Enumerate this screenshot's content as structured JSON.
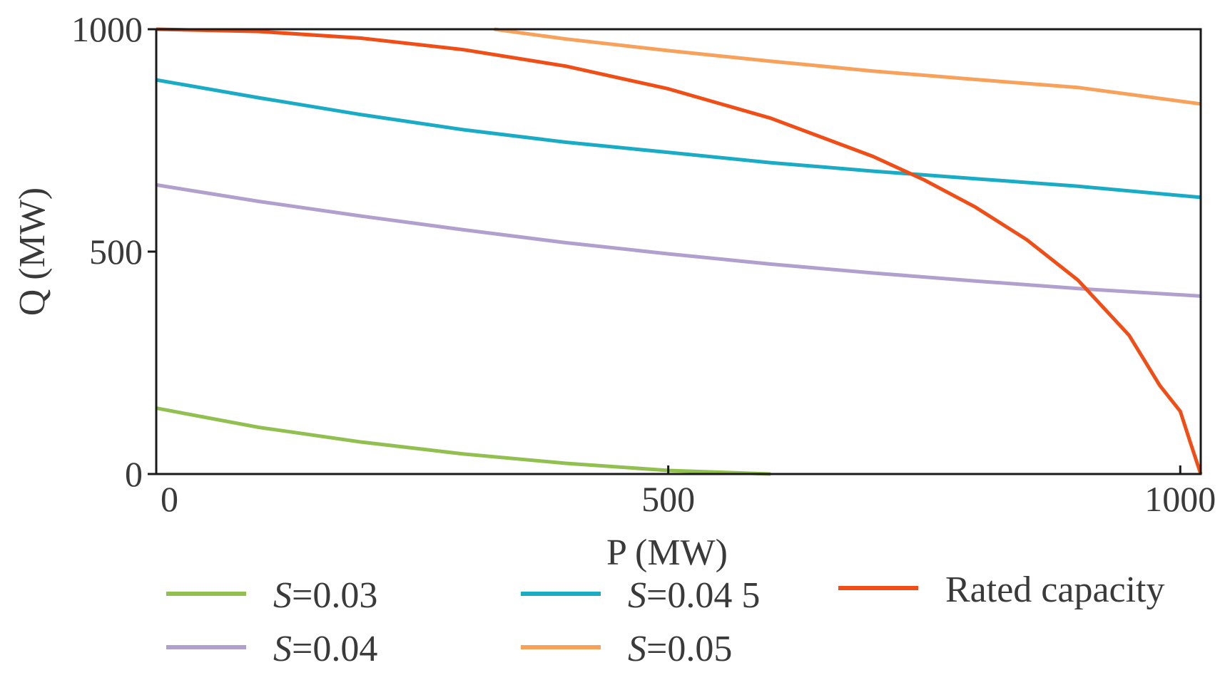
{
  "chart_data": {
    "type": "line",
    "title": "",
    "xlabel": "P (MW)",
    "ylabel": "Q (MW)",
    "xlim": [
      0,
      1020
    ],
    "ylim": [
      0,
      1000
    ],
    "xticks": [
      0,
      500,
      1000
    ],
    "yticks": [
      0,
      500,
      1000
    ],
    "xtick_labels": [
      "0",
      "500",
      "1000"
    ],
    "ytick_labels": [
      "0",
      "500",
      "1000"
    ],
    "grid": false,
    "legend_position": "bottom",
    "series": [
      {
        "name": "S=0.03",
        "legend_italic": "S",
        "legend_rest": "=0.03",
        "color": "#92c050",
        "x": [
          0,
          100,
          200,
          300,
          400,
          500,
          600
        ],
        "y": [
          148,
          105,
          72,
          45,
          24,
          8,
          0
        ]
      },
      {
        "name": "S=0.04",
        "legend_italic": "S",
        "legend_rest": "=0.04",
        "color": "#b19fcd",
        "x": [
          0,
          100,
          200,
          300,
          400,
          500,
          600,
          700,
          800,
          900,
          1020
        ],
        "y": [
          650,
          613,
          580,
          549,
          520,
          495,
          472,
          452,
          434,
          417,
          400
        ]
      },
      {
        "name": "S=0.045",
        "legend_italic": "S",
        "legend_rest": "=0.04 5",
        "color": "#1aabc5",
        "x": [
          0,
          100,
          200,
          300,
          400,
          500,
          600,
          700,
          800,
          900,
          1020
        ],
        "y": [
          886,
          846,
          808,
          774,
          746,
          723,
          700,
          681,
          664,
          647,
          622
        ]
      },
      {
        "name": "S=0.05",
        "legend_italic": "S",
        "legend_rest": "=0.05",
        "color": "#f8a15b",
        "x": [
          330,
          400,
          500,
          600,
          700,
          800,
          900,
          1020
        ],
        "y": [
          1000,
          978,
          952,
          928,
          906,
          887,
          869,
          832
        ]
      },
      {
        "name": "Rated capacity",
        "legend_italic": "",
        "legend_rest": "Rated capacity",
        "color": "#f04e16",
        "x": [
          0,
          100,
          200,
          300,
          400,
          500,
          600,
          700,
          750,
          800,
          850,
          900,
          950,
          980,
          1000,
          1010,
          1020
        ],
        "y": [
          1000,
          995,
          980,
          954,
          917,
          866,
          800,
          714,
          661,
          600,
          527,
          436,
          312,
          199,
          141,
          70,
          0
        ]
      }
    ]
  }
}
